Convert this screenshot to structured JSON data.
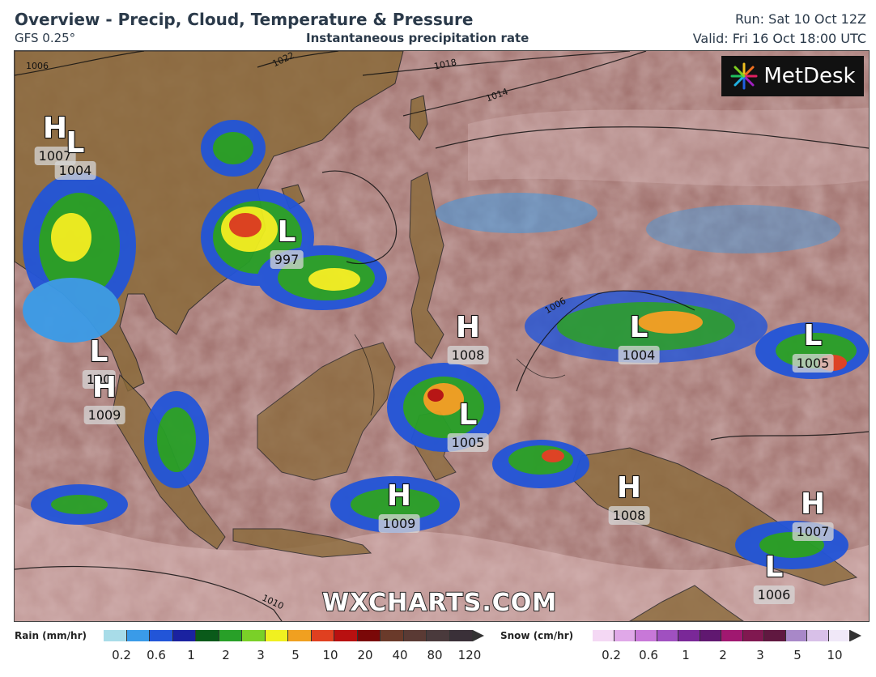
{
  "header": {
    "title": "Overview - Precip, Cloud, Temperature & Pressure",
    "model": "GFS 0.25°",
    "subtitle": "Instantaneous precipitation rate",
    "run": "Run: Sat 10 Oct 12Z",
    "valid": "Valid: Fri 16 Oct 18:00 UTC"
  },
  "logo": {
    "text": "MetDesk",
    "icon": "metdesk-starburst-icon"
  },
  "watermark": "WXCHARTS.COM",
  "pressure_centers": [
    {
      "type": "H",
      "value": "1007"
    },
    {
      "type": "L",
      "value": "1004"
    },
    {
      "type": "L",
      "value": "997"
    },
    {
      "type": "L",
      "value": "100"
    },
    {
      "type": "H",
      "value": "1009"
    },
    {
      "type": "H",
      "value": "1008"
    },
    {
      "type": "L",
      "value": "1005"
    },
    {
      "type": "L",
      "value": "1004"
    },
    {
      "type": "L",
      "value": "1005"
    },
    {
      "type": "H",
      "value": "1009"
    },
    {
      "type": "H",
      "value": "1008"
    },
    {
      "type": "H",
      "value": "1007"
    },
    {
      "type": "L",
      "value": "1006"
    }
  ],
  "isobar_labels": [
    "1006",
    "1022",
    "1018",
    "1014",
    "1006",
    "1010"
  ],
  "legend": {
    "rain": {
      "title": "Rain (mm/hr)",
      "colors": [
        "#a8dce8",
        "#3a9be8",
        "#2255d8",
        "#1a22a0",
        "#0a5a1a",
        "#28a028",
        "#7ad028",
        "#f0f020",
        "#f0a020",
        "#e04020",
        "#b81010",
        "#7a0808",
        "#6a3a2a",
        "#5a3a34",
        "#4a3a3c",
        "#3a3038"
      ],
      "ticks": [
        "0.2",
        "0.6",
        "1",
        "2",
        "3",
        "5",
        "10",
        "20",
        "40",
        "80",
        "120"
      ]
    },
    "snow": {
      "title": "Snow (cm/hr)",
      "colors": [
        "#f4d8f4",
        "#e0a8e8",
        "#c878d8",
        "#a050c0",
        "#7a2898",
        "#601870",
        "#a01870",
        "#801850",
        "#601840",
        "#a888c8",
        "#d8c0e8",
        "#f0e8f8"
      ],
      "ticks": [
        "0.2",
        "0.6",
        "1",
        "2",
        "3",
        "5",
        "10"
      ]
    }
  }
}
